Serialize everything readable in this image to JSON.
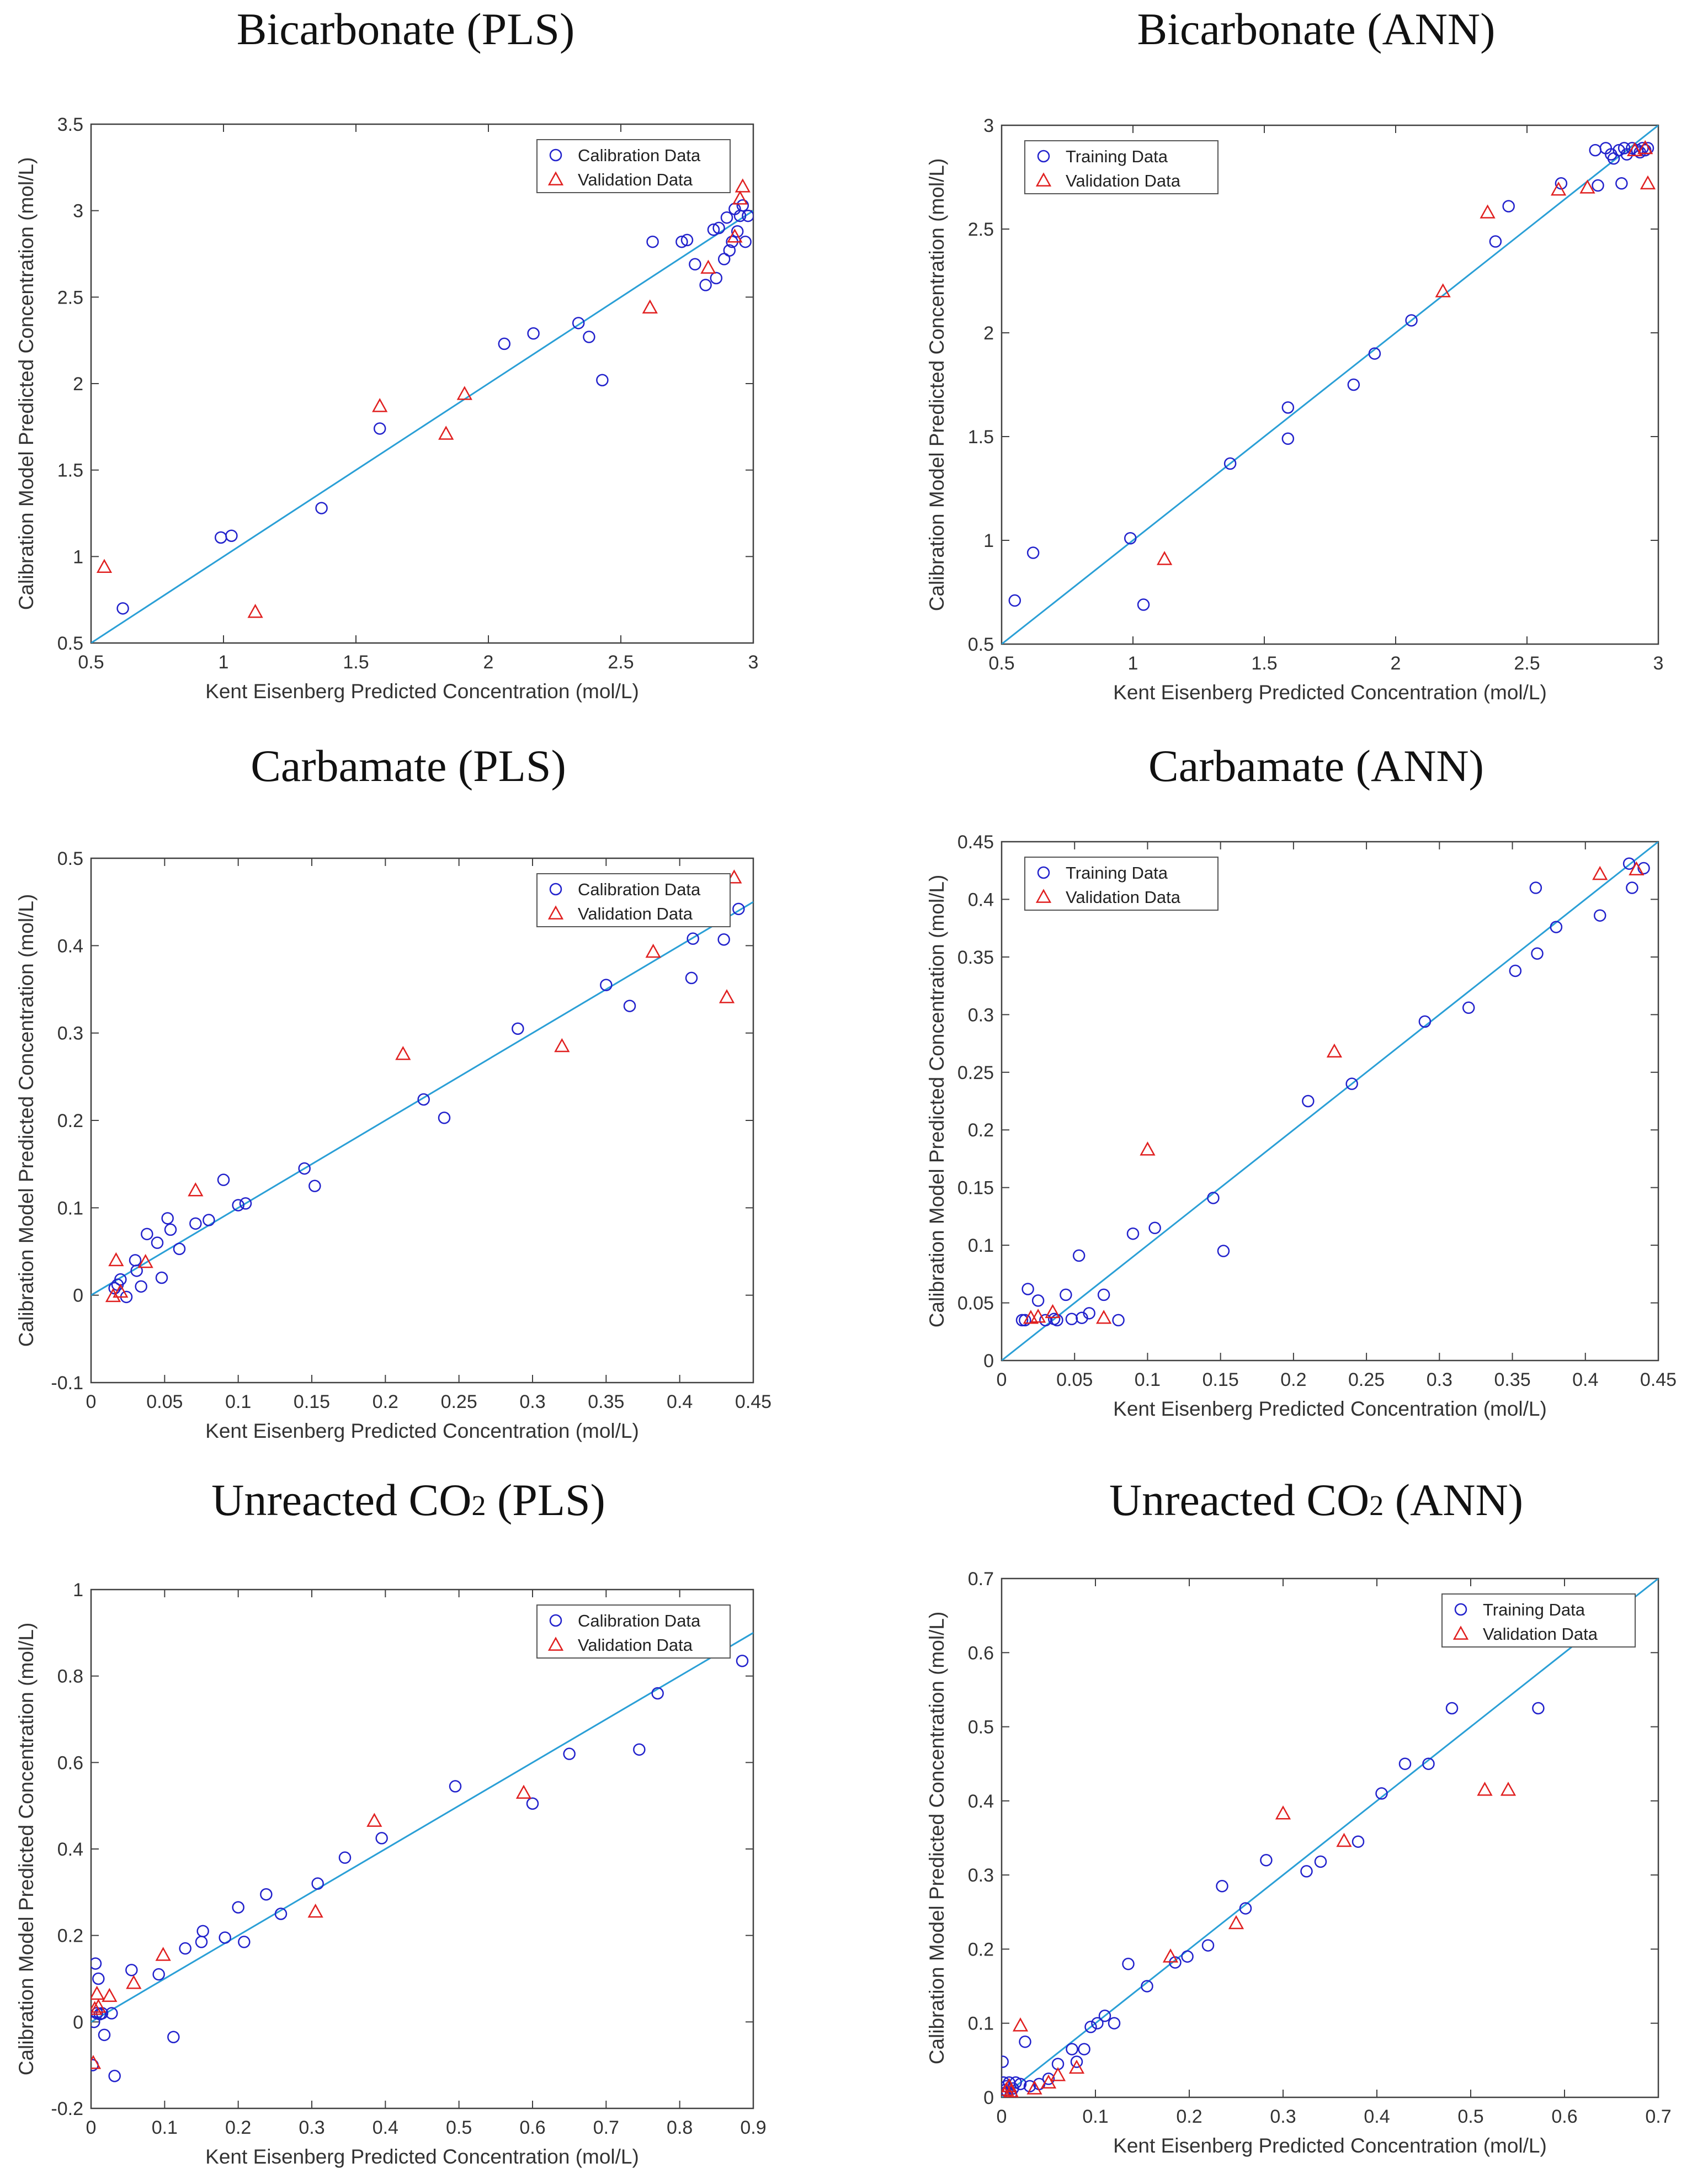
{
  "figure": {
    "panels_order": [
      "Bicarbonate (PLS)",
      "Bicarbonate (ANN)",
      "Carbamate (PLS)",
      "Carbamate (ANN)",
      "Unreacted CO2 (PLS)",
      "Unreacted CO2 (ANN)"
    ]
  },
  "colors": {
    "fit_line": "#2a9fd6",
    "circle_series": "#2222cc",
    "triangle_series": "#e02020",
    "axes": "#404040"
  },
  "chart_data": [
    {
      "type": "scatter",
      "title": "Bicarbonate (PLS)",
      "title_main": "Bicarbonate (PLS)",
      "title_sub": "",
      "title_tail": "",
      "xlabel": "Kent Eisenberg Predicted Concentration (mol/L)",
      "ylabel": "Calibration Model Predicted Concentration (mol/L)",
      "xlim": [
        0.5,
        3
      ],
      "ylim": [
        0.5,
        3.5
      ],
      "xticks": [
        0.5,
        1,
        1.5,
        2,
        2.5,
        3
      ],
      "yticks": [
        0.5,
        1,
        1.5,
        2,
        2.5,
        3,
        3.5
      ],
      "xtick_labels": [
        "0.5",
        "1",
        "1.5",
        "2",
        "2.5",
        "3"
      ],
      "ytick_labels": [
        "0.5",
        "1",
        "1.5",
        "2",
        "2.5",
        "3",
        "3.5"
      ],
      "legend_position": "top-right",
      "fit_line": {
        "x": [
          0.5,
          3
        ],
        "y": [
          0.5,
          3
        ]
      },
      "series": [
        {
          "name": "Calibration Data",
          "marker": "circle",
          "x": [
            0.62,
            0.99,
            1.03,
            1.37,
            1.59,
            2.06,
            2.17,
            2.34,
            2.38,
            2.43,
            2.62,
            2.73,
            2.75,
            2.78,
            2.82,
            2.85,
            2.86,
            2.87,
            2.89,
            2.9,
            2.91,
            2.92,
            2.93,
            2.94,
            2.95,
            2.96,
            2.97,
            2.98
          ],
          "y": [
            0.7,
            1.11,
            1.12,
            1.28,
            1.74,
            2.23,
            2.29,
            2.35,
            2.27,
            2.02,
            2.82,
            2.82,
            2.83,
            2.69,
            2.57,
            2.89,
            2.61,
            2.9,
            2.72,
            2.96,
            2.77,
            2.82,
            3.01,
            2.88,
            2.97,
            3.03,
            2.82,
            2.97
          ]
        },
        {
          "name": "Validation Data",
          "marker": "triangle",
          "x": [
            0.55,
            1.12,
            1.59,
            1.84,
            1.91,
            2.61,
            2.83,
            2.93,
            2.95,
            2.96
          ],
          "y": [
            0.94,
            0.68,
            1.87,
            1.71,
            1.94,
            2.44,
            2.67,
            2.85,
            3.07,
            3.14
          ]
        }
      ]
    },
    {
      "type": "scatter",
      "title": "Bicarbonate (ANN)",
      "title_main": "Bicarbonate (ANN)",
      "title_sub": "",
      "title_tail": "",
      "xlabel": "Kent Eisenberg Predicted Concentration (mol/L)",
      "ylabel": "Calibration Model Predicted Concentration (mol/L)",
      "xlim": [
        0.5,
        3
      ],
      "ylim": [
        0.5,
        3
      ],
      "xticks": [
        0.5,
        1,
        1.5,
        2,
        2.5,
        3
      ],
      "yticks": [
        0.5,
        1,
        1.5,
        2,
        2.5,
        3
      ],
      "xtick_labels": [
        "0.5",
        "1",
        "1.5",
        "2",
        "2.5",
        "3"
      ],
      "ytick_labels": [
        "0.5",
        "1",
        "1.5",
        "2",
        "2.5",
        "3"
      ],
      "legend_position": "top-left",
      "fit_line": {
        "x": [
          0.5,
          3
        ],
        "y": [
          0.5,
          3
        ]
      },
      "series": [
        {
          "name": "Training Data",
          "marker": "circle",
          "x": [
            0.55,
            0.62,
            0.99,
            1.04,
            1.37,
            1.59,
            1.59,
            1.84,
            1.92,
            2.06,
            2.38,
            2.43,
            2.63,
            2.76,
            2.77,
            2.8,
            2.82,
            2.83,
            2.85,
            2.86,
            2.87,
            2.88,
            2.9,
            2.92,
            2.93,
            2.94,
            2.95,
            2.96
          ],
          "y": [
            0.71,
            0.94,
            1.01,
            0.69,
            1.37,
            1.49,
            1.64,
            1.75,
            1.9,
            2.06,
            2.44,
            2.61,
            2.72,
            2.88,
            2.71,
            2.89,
            2.86,
            2.84,
            2.88,
            2.72,
            2.89,
            2.86,
            2.89,
            2.88,
            2.87,
            2.89,
            2.88,
            2.89
          ]
        },
        {
          "name": "Validation Data",
          "marker": "triangle",
          "x": [
            1.12,
            2.18,
            2.35,
            2.62,
            2.73,
            2.91,
            2.95,
            2.96
          ],
          "y": [
            0.91,
            2.2,
            2.58,
            2.69,
            2.7,
            2.88,
            2.89,
            2.72
          ]
        }
      ]
    },
    {
      "type": "scatter",
      "title": "Carbamate (PLS)",
      "title_main": "Carbamate (PLS)",
      "title_sub": "",
      "title_tail": "",
      "xlabel": "Kent Eisenberg Predicted Concentration (mol/L)",
      "ylabel": "Calibration Model Predicted Concentration (mol/L)",
      "xlim": [
        0,
        0.45
      ],
      "ylim": [
        -0.1,
        0.5
      ],
      "xticks": [
        0,
        0.05,
        0.1,
        0.15,
        0.2,
        0.25,
        0.3,
        0.35,
        0.4,
        0.45
      ],
      "yticks": [
        -0.1,
        0,
        0.1,
        0.2,
        0.3,
        0.4,
        0.5
      ],
      "xtick_labels": [
        "0",
        "0.05",
        "0.1",
        "0.15",
        "0.2",
        "0.25",
        "0.3",
        "0.35",
        "0.4",
        "0.45"
      ],
      "ytick_labels": [
        "-0.1",
        "0",
        "0.1",
        "0.2",
        "0.3",
        "0.4",
        "0.5"
      ],
      "legend_position": "top-right",
      "fit_line": {
        "x": [
          0,
          0.45
        ],
        "y": [
          0,
          0.45
        ]
      },
      "series": [
        {
          "name": "Calibration Data",
          "marker": "circle",
          "x": [
            0.016,
            0.018,
            0.02,
            0.024,
            0.03,
            0.031,
            0.034,
            0.038,
            0.045,
            0.048,
            0.052,
            0.054,
            0.06,
            0.071,
            0.08,
            0.09,
            0.1,
            0.105,
            0.145,
            0.152,
            0.226,
            0.24,
            0.29,
            0.35,
            0.366,
            0.408,
            0.409,
            0.43,
            0.44
          ],
          "y": [
            0.008,
            0.012,
            0.018,
            -0.002,
            0.04,
            0.028,
            0.01,
            0.07,
            0.06,
            0.02,
            0.088,
            0.075,
            0.053,
            0.082,
            0.086,
            0.132,
            0.103,
            0.105,
            0.145,
            0.125,
            0.224,
            0.203,
            0.305,
            0.355,
            0.331,
            0.363,
            0.408,
            0.407,
            0.442
          ]
        },
        {
          "name": "Validation Data",
          "marker": "triangle",
          "x": [
            0.015,
            0.017,
            0.02,
            0.037,
            0.071,
            0.212,
            0.32,
            0.382,
            0.432,
            0.437
          ],
          "y": [
            -0.001,
            0.04,
            0.004,
            0.038,
            0.12,
            0.276,
            0.285,
            0.393,
            0.341,
            0.478
          ]
        }
      ]
    },
    {
      "type": "scatter",
      "title": "Carbamate (ANN)",
      "title_main": "Carbamate (ANN)",
      "title_sub": "",
      "title_tail": "",
      "xlabel": "Kent Eisenberg Predicted Concentration (mol/L)",
      "ylabel": "Calibration Model Predicted Concentration (mol/L)",
      "xlim": [
        0,
        0.45
      ],
      "ylim": [
        0,
        0.45
      ],
      "xticks": [
        0,
        0.05,
        0.1,
        0.15,
        0.2,
        0.25,
        0.3,
        0.35,
        0.4,
        0.45
      ],
      "yticks": [
        0,
        0.05,
        0.1,
        0.15,
        0.2,
        0.25,
        0.3,
        0.35,
        0.4,
        0.45
      ],
      "xtick_labels": [
        "0",
        "0.05",
        "0.1",
        "0.15",
        "0.2",
        "0.25",
        "0.3",
        "0.35",
        "0.4",
        "0.45"
      ],
      "ytick_labels": [
        "0",
        "0.05",
        "0.1",
        "0.15",
        "0.2",
        "0.25",
        "0.3",
        "0.35",
        "0.4",
        "0.45"
      ],
      "legend_position": "top-left",
      "fit_line": {
        "x": [
          0,
          0.45
        ],
        "y": [
          0,
          0.45
        ]
      },
      "series": [
        {
          "name": "Training Data",
          "marker": "circle",
          "x": [
            0.014,
            0.016,
            0.018,
            0.025,
            0.03,
            0.036,
            0.038,
            0.044,
            0.048,
            0.053,
            0.055,
            0.06,
            0.07,
            0.08,
            0.09,
            0.105,
            0.145,
            0.152,
            0.21,
            0.24,
            0.29,
            0.32,
            0.352,
            0.366,
            0.367,
            0.38,
            0.41,
            0.43,
            0.432,
            0.44
          ],
          "y": [
            0.035,
            0.035,
            0.062,
            0.052,
            0.035,
            0.036,
            0.035,
            0.057,
            0.036,
            0.091,
            0.037,
            0.041,
            0.057,
            0.035,
            0.11,
            0.115,
            0.141,
            0.095,
            0.225,
            0.24,
            0.294,
            0.306,
            0.338,
            0.41,
            0.353,
            0.376,
            0.386,
            0.431,
            0.41,
            0.427
          ]
        },
        {
          "name": "Validation Data",
          "marker": "triangle",
          "x": [
            0.02,
            0.025,
            0.035,
            0.07,
            0.1,
            0.228,
            0.41,
            0.435
          ],
          "y": [
            0.037,
            0.038,
            0.042,
            0.037,
            0.183,
            0.268,
            0.422,
            0.426
          ]
        }
      ]
    },
    {
      "type": "scatter",
      "title": "Unreacted CO2 (PLS)",
      "title_main": "Unreacted CO",
      "title_sub": "2",
      "title_tail": " (PLS)",
      "xlabel": "Kent Eisenberg Predicted Concentration (mol/L)",
      "ylabel": "Calibration Model Predicted Concentration (mol/L)",
      "xlim": [
        0,
        0.9
      ],
      "ylim": [
        -0.2,
        1
      ],
      "xticks": [
        0,
        0.1,
        0.2,
        0.3,
        0.4,
        0.5,
        0.6,
        0.7,
        0.8,
        0.9
      ],
      "yticks": [
        -0.2,
        0,
        0.2,
        0.4,
        0.6,
        0.8,
        1
      ],
      "xtick_labels": [
        "0",
        "0.1",
        "0.2",
        "0.3",
        "0.4",
        "0.5",
        "0.6",
        "0.7",
        "0.8",
        "0.9"
      ],
      "ytick_labels": [
        "-0.2",
        "0",
        "0.2",
        "0.4",
        "0.6",
        "0.8",
        "1"
      ],
      "legend_position": "top-right",
      "fit_line": {
        "x": [
          0,
          0.9
        ],
        "y": [
          0,
          0.9
        ]
      },
      "series": [
        {
          "name": "Calibration Data",
          "marker": "circle",
          "x": [
            0.002,
            0.004,
            0.006,
            0.008,
            0.01,
            0.012,
            0.015,
            0.018,
            0.028,
            0.032,
            0.055,
            0.092,
            0.112,
            0.128,
            0.15,
            0.152,
            0.182,
            0.2,
            0.208,
            0.238,
            0.258,
            0.308,
            0.345,
            0.395,
            0.495,
            0.6,
            0.65,
            0.745,
            0.77,
            0.885
          ],
          "y": [
            -0.1,
            0.0,
            0.135,
            0.02,
            0.1,
            0.018,
            0.02,
            -0.03,
            0.02,
            -0.125,
            0.12,
            0.11,
            -0.035,
            0.17,
            0.185,
            0.21,
            0.195,
            0.265,
            0.185,
            0.295,
            0.25,
            0.32,
            0.38,
            0.425,
            0.545,
            0.505,
            0.62,
            0.63,
            0.76,
            0.835
          ]
        },
        {
          "name": "Validation Data",
          "marker": "triangle",
          "x": [
            0.003,
            0.005,
            0.008,
            0.01,
            0.025,
            0.058,
            0.098,
            0.305,
            0.385,
            0.588
          ],
          "y": [
            -0.095,
            0.03,
            0.065,
            0.035,
            0.06,
            0.09,
            0.155,
            0.255,
            0.465,
            0.53
          ]
        }
      ]
    },
    {
      "type": "scatter",
      "title": "Unreacted CO2 (ANN)",
      "title_main": "Unreacted CO",
      "title_sub": "2",
      "title_tail": " (ANN)",
      "xlabel": "Kent Eisenberg Predicted Concentration (mol/L)",
      "ylabel": "Calibration Model Predicted Concentration (mol/L)",
      "xlim": [
        0,
        0.7
      ],
      "ylim": [
        0,
        0.7
      ],
      "xticks": [
        0,
        0.1,
        0.2,
        0.3,
        0.4,
        0.5,
        0.6,
        0.7
      ],
      "yticks": [
        0,
        0.1,
        0.2,
        0.3,
        0.4,
        0.5,
        0.6,
        0.7
      ],
      "xtick_labels": [
        "0",
        "0.1",
        "0.2",
        "0.3",
        "0.4",
        "0.5",
        "0.6",
        "0.7"
      ],
      "ytick_labels": [
        "0",
        "0.1",
        "0.2",
        "0.3",
        "0.4",
        "0.5",
        "0.6",
        "0.7"
      ],
      "legend_position": "top-right",
      "fit_line": {
        "x": [
          0,
          0.7
        ],
        "y": [
          0,
          0.7
        ]
      },
      "series": [
        {
          "name": "Training Data",
          "marker": "circle",
          "x": [
            0.001,
            0.002,
            0.003,
            0.004,
            0.005,
            0.006,
            0.008,
            0.01,
            0.012,
            0.015,
            0.02,
            0.025,
            0.03,
            0.04,
            0.05,
            0.06,
            0.075,
            0.08,
            0.088,
            0.095,
            0.102,
            0.11,
            0.12,
            0.135,
            0.155,
            0.185,
            0.198,
            0.22,
            0.235,
            0.26,
            0.282,
            0.325,
            0.34,
            0.38,
            0.405,
            0.43,
            0.455,
            0.48,
            0.572
          ],
          "y": [
            0.048,
            0.02,
            0.005,
            0.01,
            0.015,
            0.008,
            0.02,
            0.005,
            0.012,
            0.02,
            0.018,
            0.075,
            0.015,
            0.018,
            0.025,
            0.045,
            0.065,
            0.048,
            0.065,
            0.095,
            0.1,
            0.11,
            0.1,
            0.18,
            0.15,
            0.182,
            0.19,
            0.205,
            0.285,
            0.255,
            0.32,
            0.305,
            0.318,
            0.345,
            0.41,
            0.45,
            0.45,
            0.525,
            0.525
          ]
        },
        {
          "name": "Validation Data",
          "marker": "triangle",
          "x": [
            0.003,
            0.005,
            0.008,
            0.01,
            0.02,
            0.035,
            0.05,
            0.06,
            0.08,
            0.18,
            0.25,
            0.3,
            0.365,
            0.515,
            0.54
          ],
          "y": [
            0.005,
            0.01,
            0.015,
            0.008,
            0.097,
            0.012,
            0.02,
            0.03,
            0.04,
            0.19,
            0.235,
            0.383,
            0.346,
            0.415,
            0.415
          ]
        }
      ]
    }
  ]
}
